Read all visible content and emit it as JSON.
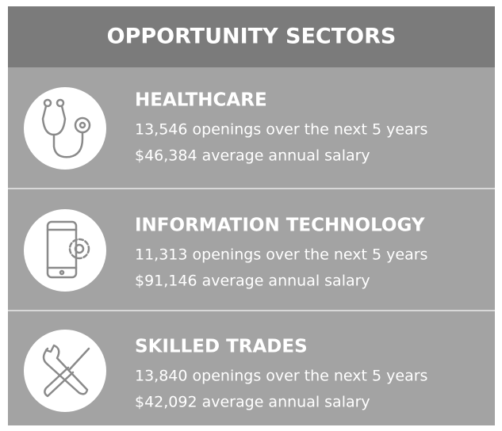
{
  "header": {
    "title": "OPPORTUNITY SECTORS"
  },
  "sectors": [
    {
      "name": "HEALTHCARE",
      "openings": "13,546 openings over the next 5 years",
      "salary": "$46,384 average annual salary"
    },
    {
      "name": "INFORMATION TECHNOLOGY",
      "openings": "11,313 openings over the next 5 years",
      "salary": "$91,146 average annual salary"
    },
    {
      "name": "SKILLED TRADES",
      "openings": "13,840 openings over the next 5 years",
      "salary": "$42,092 average annual salary"
    }
  ]
}
